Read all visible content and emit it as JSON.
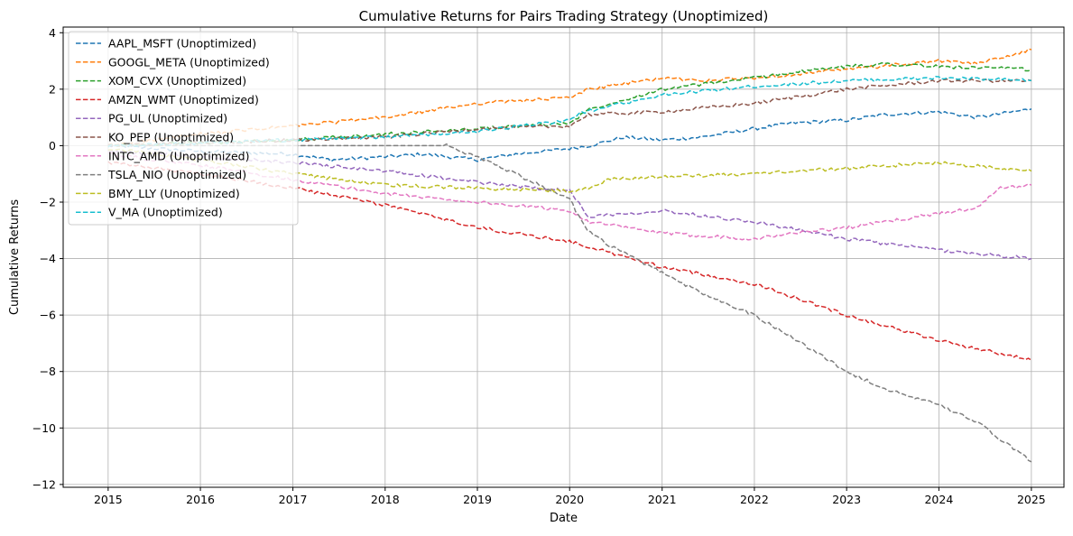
{
  "chart_data": {
    "type": "line",
    "title": "Cumulative Returns for Pairs Trading Strategy (Unoptimized)",
    "xlabel": "Date",
    "ylabel": "Cumulative Returns",
    "x_ticks": [
      "2015",
      "2016",
      "2017",
      "2018",
      "2019",
      "2020",
      "2021",
      "2022",
      "2023",
      "2024",
      "2025"
    ],
    "y_ticks": [
      4,
      2,
      0,
      -2,
      -4,
      -6,
      -8,
      -10,
      -12
    ],
    "xlim": [
      "2014-07-07",
      "2025-05-10"
    ],
    "ylim": [
      -12.1,
      4.2
    ],
    "grid": true,
    "legend_position": "top-left",
    "line_style": "dashed",
    "series": [
      {
        "name": "AAPL_MSFT (Unoptimized)",
        "color": "#1f77b4",
        "points": [
          [
            "2015-01-01",
            0
          ],
          [
            "2016-01-01",
            -0.2
          ],
          [
            "2017-01-01",
            -0.3
          ],
          [
            "2017-06-01",
            -0.5
          ],
          [
            "2018-01-01",
            -0.4
          ],
          [
            "2018-06-01",
            -0.3
          ],
          [
            "2019-01-01",
            -0.5
          ],
          [
            "2019-06-01",
            -0.3
          ],
          [
            "2020-01-01",
            -0.1
          ],
          [
            "2020-03-20",
            0.0
          ],
          [
            "2020-08-01",
            0.3
          ],
          [
            "2021-01-01",
            0.2
          ],
          [
            "2021-06-01",
            0.3
          ],
          [
            "2022-01-01",
            0.6
          ],
          [
            "2022-06-01",
            0.8
          ],
          [
            "2023-01-01",
            0.9
          ],
          [
            "2023-06-01",
            1.1
          ],
          [
            "2024-01-01",
            1.2
          ],
          [
            "2024-06-01",
            1.0
          ],
          [
            "2025-01-01",
            1.3
          ]
        ]
      },
      {
        "name": "GOOGL_META (Unoptimized)",
        "color": "#ff7f0e",
        "points": [
          [
            "2015-01-01",
            0
          ],
          [
            "2016-01-01",
            0.4
          ],
          [
            "2017-01-01",
            0.7
          ],
          [
            "2018-01-01",
            1.0
          ],
          [
            "2019-01-01",
            1.5
          ],
          [
            "2020-01-01",
            1.7
          ],
          [
            "2020-03-15",
            2.0
          ],
          [
            "2021-01-01",
            2.4
          ],
          [
            "2021-06-01",
            2.3
          ],
          [
            "2022-01-01",
            2.4
          ],
          [
            "2023-01-01",
            2.7
          ],
          [
            "2024-01-01",
            3.0
          ],
          [
            "2024-06-01",
            2.9
          ],
          [
            "2025-01-01",
            3.4
          ]
        ]
      },
      {
        "name": "XOM_CVX (Unoptimized)",
        "color": "#2ca02c",
        "points": [
          [
            "2015-01-01",
            0
          ],
          [
            "2016-01-01",
            0.1
          ],
          [
            "2017-01-01",
            0.2
          ],
          [
            "2018-01-01",
            0.4
          ],
          [
            "2019-01-01",
            0.6
          ],
          [
            "2020-01-01",
            0.8
          ],
          [
            "2020-03-20",
            1.3
          ],
          [
            "2021-01-01",
            2.0
          ],
          [
            "2022-01-01",
            2.4
          ],
          [
            "2022-06-01",
            2.6
          ],
          [
            "2023-01-01",
            2.8
          ],
          [
            "2023-06-01",
            2.9
          ],
          [
            "2024-01-01",
            2.8
          ],
          [
            "2025-01-01",
            2.7
          ]
        ]
      },
      {
        "name": "AMZN_WMT (Unoptimized)",
        "color": "#d62728",
        "points": [
          [
            "2015-01-01",
            -0.6
          ],
          [
            "2016-01-01",
            -1.0
          ],
          [
            "2017-01-01",
            -1.5
          ],
          [
            "2018-01-01",
            -2.1
          ],
          [
            "2019-01-01",
            -2.9
          ],
          [
            "2020-01-01",
            -3.4
          ],
          [
            "2021-01-01",
            -4.3
          ],
          [
            "2022-01-01",
            -4.9
          ],
          [
            "2023-01-01",
            -6.0
          ],
          [
            "2024-01-01",
            -6.9
          ],
          [
            "2025-01-01",
            -7.6
          ]
        ]
      },
      {
        "name": "PG_UL (Unoptimized)",
        "color": "#9467bd",
        "points": [
          [
            "2015-01-01",
            -0.2
          ],
          [
            "2016-01-01",
            -0.4
          ],
          [
            "2017-01-01",
            -0.6
          ],
          [
            "2018-01-01",
            -0.9
          ],
          [
            "2019-01-01",
            -1.3
          ],
          [
            "2020-01-01",
            -1.6
          ],
          [
            "2020-03-15",
            -2.5
          ],
          [
            "2021-01-01",
            -2.3
          ],
          [
            "2022-01-01",
            -2.7
          ],
          [
            "2023-01-01",
            -3.3
          ],
          [
            "2024-01-01",
            -3.7
          ],
          [
            "2025-01-01",
            -4.0
          ]
        ]
      },
      {
        "name": "KO_PEP (Unoptimized)",
        "color": "#8c564b",
        "points": [
          [
            "2015-01-01",
            0
          ],
          [
            "2016-01-01",
            0.1
          ],
          [
            "2017-01-01",
            0.2
          ],
          [
            "2018-01-01",
            0.3
          ],
          [
            "2019-01-01",
            0.6
          ],
          [
            "2020-01-01",
            0.7
          ],
          [
            "2020-03-15",
            1.1
          ],
          [
            "2021-01-01",
            1.2
          ],
          [
            "2022-01-01",
            1.5
          ],
          [
            "2023-01-01",
            2.0
          ],
          [
            "2024-01-01",
            2.3
          ],
          [
            "2025-01-01",
            2.3
          ]
        ]
      },
      {
        "name": "INTC_AMD (Unoptimized)",
        "color": "#e377c2",
        "points": [
          [
            "2015-01-01",
            -0.3
          ],
          [
            "2016-01-01",
            -0.7
          ],
          [
            "2017-01-01",
            -1.2
          ],
          [
            "2018-01-01",
            -1.7
          ],
          [
            "2019-01-01",
            -2.0
          ],
          [
            "2020-01-01",
            -2.3
          ],
          [
            "2020-03-20",
            -2.7
          ],
          [
            "2021-01-01",
            -3.1
          ],
          [
            "2022-01-01",
            -3.3
          ],
          [
            "2022-06-01",
            -3.1
          ],
          [
            "2023-01-01",
            -2.9
          ],
          [
            "2023-06-01",
            -2.7
          ],
          [
            "2024-01-01",
            -2.4
          ],
          [
            "2024-06-01",
            -2.2
          ],
          [
            "2024-09-01",
            -1.5
          ],
          [
            "2025-01-01",
            -1.4
          ]
        ]
      },
      {
        "name": "TSLA_NIO (Unoptimized)",
        "color": "#7f7f7f",
        "points": [
          [
            "2015-01-01",
            0
          ],
          [
            "2018-09-01",
            0
          ],
          [
            "2019-01-01",
            -0.4
          ],
          [
            "2019-06-01",
            -1.0
          ],
          [
            "2020-01-01",
            -1.9
          ],
          [
            "2020-03-01",
            -2.9
          ],
          [
            "2020-06-01",
            -3.5
          ],
          [
            "2021-01-01",
            -4.5
          ],
          [
            "2021-06-01",
            -5.2
          ],
          [
            "2022-01-01",
            -6.0
          ],
          [
            "2022-06-01",
            -6.8
          ],
          [
            "2023-01-01",
            -8.0
          ],
          [
            "2023-06-01",
            -8.6
          ],
          [
            "2024-01-01",
            -9.2
          ],
          [
            "2024-06-01",
            -9.8
          ],
          [
            "2025-01-01",
            -11.2
          ]
        ]
      },
      {
        "name": "BMY_LLY (Unoptimized)",
        "color": "#bcbd22",
        "points": [
          [
            "2015-01-01",
            -0.1
          ],
          [
            "2016-01-01",
            -0.5
          ],
          [
            "2017-01-01",
            -1.0
          ],
          [
            "2018-01-01",
            -1.4
          ],
          [
            "2019-01-01",
            -1.5
          ],
          [
            "2020-01-01",
            -1.6
          ],
          [
            "2020-03-15",
            -1.5
          ],
          [
            "2020-06-01",
            -1.2
          ],
          [
            "2021-01-01",
            -1.1
          ],
          [
            "2022-01-01",
            -1.0
          ],
          [
            "2023-01-01",
            -0.8
          ],
          [
            "2024-01-01",
            -0.6
          ],
          [
            "2025-01-01",
            -0.9
          ]
        ]
      },
      {
        "name": "V_MA (Unoptimized)",
        "color": "#17becf",
        "points": [
          [
            "2015-01-01",
            0
          ],
          [
            "2016-01-01",
            0.1
          ],
          [
            "2017-01-01",
            0.2
          ],
          [
            "2018-01-01",
            0.3
          ],
          [
            "2019-01-01",
            0.5
          ],
          [
            "2020-01-01",
            0.9
          ],
          [
            "2020-03-01",
            1.2
          ],
          [
            "2021-01-01",
            1.8
          ],
          [
            "2022-01-01",
            2.1
          ],
          [
            "2023-01-01",
            2.3
          ],
          [
            "2024-01-01",
            2.4
          ],
          [
            "2025-01-01",
            2.3
          ]
        ]
      }
    ]
  }
}
